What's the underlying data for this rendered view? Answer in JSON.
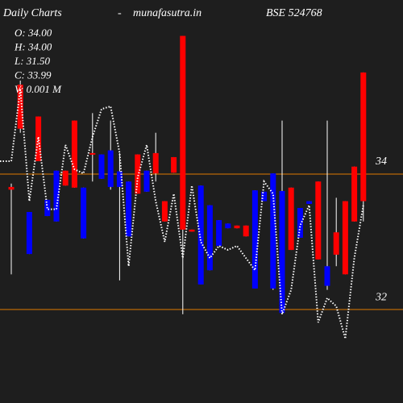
{
  "chart_data": {
    "type": "candlestick",
    "title": "Daily Charts",
    "separator": "-",
    "source": "munafasutra.in",
    "subtitle": "BSE 524768",
    "annotations": [
      "O: 34.00",
      "H: 34.00",
      "L: 31.50",
      "C: 33.99",
      "V: 0.001 M"
    ],
    "open": [
      33.77,
      34.67,
      33.44,
      34.19,
      33.62,
      34.05,
      33.83,
      33.8,
      33.8,
      34.29,
      34.29,
      34.35,
      34.04,
      33.89,
      33.71,
      34.05,
      34.01,
      33.3,
      34.02,
      33.18,
      33.15,
      33.83,
      33.54,
      33.32,
      33.27,
      33.2,
      33.08,
      33.76,
      33.74,
      34.01,
      33.75,
      32.88,
      33.5,
      33.6,
      32.74,
      32.64,
      32.81,
      32.52,
      33.3,
      33.6
    ],
    "high": [
      33.86,
      35.38,
      33.44,
      34.85,
      33.62,
      34.05,
      34.05,
      34.79,
      33.8,
      34.9,
      34.29,
      34.79,
      34.31,
      33.89,
      34.29,
      34.05,
      34.61,
      33.6,
      34.25,
      36.04,
      33.18,
      33.83,
      33.54,
      33.32,
      33.27,
      33.24,
      33.24,
      33.76,
      33.74,
      34.01,
      34.79,
      33.8,
      33.5,
      33.6,
      33.89,
      34.79,
      33.65,
      33.6,
      34.11,
      35.5
    ],
    "low": [
      32.52,
      34.61,
      32.82,
      34.19,
      33.38,
      33.3,
      33.83,
      33.8,
      33.05,
      33.89,
      33.93,
      33.77,
      32.43,
      33.08,
      33.71,
      33.74,
      33.89,
      33.3,
      34.02,
      31.93,
      33.15,
      32.37,
      32.58,
      32.94,
      33.2,
      33.2,
      33.08,
      32.31,
      33.6,
      32.29,
      31.93,
      32.88,
      33.06,
      33.56,
      32.74,
      32.29,
      32.64,
      32.52,
      33.3,
      33.3
    ],
    "close": [
      33.81,
      35.32,
      32.82,
      34.85,
      33.38,
      33.3,
      34.05,
      34.79,
      33.05,
      34.31,
      33.93,
      33.81,
      33.81,
      33.08,
      34.29,
      33.74,
      34.31,
      33.6,
      34.25,
      36.04,
      33.18,
      32.37,
      32.58,
      32.94,
      33.2,
      33.24,
      33.24,
      32.31,
      33.6,
      32.31,
      31.95,
      33.8,
      33.06,
      33.56,
      33.89,
      32.35,
      33.14,
      33.6,
      34.11,
      35.5
    ],
    "up_color": "#ff0000",
    "down_color": "#0000ff",
    "line_values": [
      34.19,
      35.26,
      33.6,
      34.55,
      33.48,
      33.48,
      34.43,
      34.07,
      34.01,
      34.55,
      34.96,
      35.0,
      34.31,
      32.64,
      33.95,
      34.43,
      33.6,
      33.0,
      33.71,
      32.76,
      33.83,
      33.0,
      32.76,
      32.94,
      32.88,
      32.94,
      32.76,
      32.58,
      33.89,
      33.71,
      31.93,
      32.29,
      33.24,
      33.54,
      31.81,
      32.17,
      32.05,
      31.57,
      32.76,
      33.54
    ],
    "line_color": "#ffffff",
    "ylim": [
      30.62,
      36.57
    ],
    "yticks": [
      32,
      34
    ],
    "grid_color": "#e07b00"
  }
}
